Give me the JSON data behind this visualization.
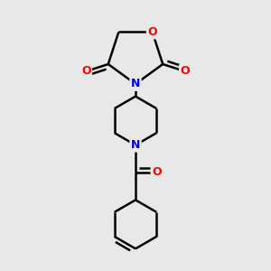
{
  "bg_color": "#e8e8e8",
  "bond_color": "#000000",
  "N_color": "#0000ee",
  "O_color": "#ff0000",
  "bond_width": 1.8,
  "figsize": [
    3.0,
    3.0
  ],
  "dpi": 100,
  "xlim": [
    -2.2,
    2.2
  ],
  "ylim": [
    -3.5,
    2.8
  ]
}
